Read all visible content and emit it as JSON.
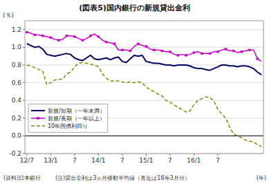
{
  "chart_data": {
    "type": "line",
    "title": "(図表5)国内銀行の新規貸出金利",
    "y_label": "(％)",
    "x_label": "(年)",
    "annotations": [
      "(資料)日本銀行",
      "(注)貸出金利は3ヵ月移動平均値（直近は16年3月分）"
    ],
    "categories": [
      "12/7",
      null,
      null,
      null,
      null,
      null,
      "13/1",
      null,
      null,
      null,
      null,
      null,
      "7",
      null,
      null,
      null,
      null,
      null,
      "14/1",
      null,
      null,
      null,
      null,
      null,
      "7",
      null,
      null,
      null,
      null,
      null,
      "15/1",
      null,
      null,
      null,
      null,
      null,
      "7",
      null,
      null,
      null,
      null,
      null,
      "16/1",
      null,
      null,
      null,
      null,
      null,
      "7",
      null,
      null,
      null,
      null,
      null,
      null,
      null,
      null,
      null,
      null,
      null
    ],
    "series": [
      {
        "name": "新規/短期（一年未満）",
        "color": "#000066",
        "line_style": "solid",
        "values": [
          1.04,
          1.02,
          1.0,
          1.01,
          0.98,
          0.92,
          0.91,
          0.9,
          0.91,
          0.92,
          0.93,
          0.92,
          0.88,
          0.86,
          0.85,
          0.88,
          0.91,
          0.87,
          0.86,
          0.87,
          0.88,
          0.86,
          0.88,
          0.89,
          0.84,
          0.83,
          0.87,
          0.91,
          0.9,
          0.91,
          0.84,
          0.83,
          0.82,
          0.82,
          0.81,
          0.8,
          0.8,
          0.79,
          0.8,
          0.8,
          0.8,
          0.79,
          0.77,
          0.76,
          0.76,
          0.75,
          0.74,
          0.76,
          0.78,
          0.8,
          0.8,
          0.79,
          0.79,
          0.78,
          0.79,
          0.79,
          0.78,
          0.76,
          0.72,
          0.69
        ]
      },
      {
        "name": "新規/長期（一年以上）",
        "color": "#cc00cc",
        "line_style": "solid",
        "marker": "square",
        "values": [
          1.17,
          1.16,
          1.14,
          1.14,
          1.13,
          1.12,
          1.11,
          1.09,
          1.08,
          1.09,
          1.13,
          1.13,
          1.12,
          1.1,
          1.08,
          1.1,
          1.13,
          1.15,
          1.12,
          1.08,
          1.06,
          1.05,
          1.04,
          0.97,
          0.97,
          0.97,
          0.96,
          1.01,
          1.04,
          1.02,
          1.01,
          0.98,
          0.97,
          0.97,
          0.96,
          0.95,
          0.95,
          0.92,
          0.91,
          0.92,
          0.91,
          0.92,
          0.94,
          0.95,
          0.93,
          0.93,
          0.93,
          0.95,
          0.95,
          0.97,
          0.98,
          0.96,
          0.96,
          0.94,
          0.95,
          0.96,
          0.97,
          0.97,
          0.87,
          0.84
        ]
      },
      {
        "name": "10年国債利回り",
        "color": "#888800",
        "line_style": "dashed",
        "values": [
          0.8,
          0.79,
          0.77,
          0.75,
          0.73,
          0.58,
          0.6,
          0.63,
          0.64,
          0.64,
          0.7,
          0.72,
          0.78,
          0.82,
          0.83,
          0.82,
          0.81,
          0.8,
          0.78,
          0.7,
          0.65,
          0.62,
          0.62,
          0.62,
          0.61,
          0.6,
          0.61,
          0.6,
          0.61,
          0.6,
          0.55,
          0.52,
          0.5,
          0.47,
          0.45,
          0.4,
          0.38,
          0.35,
          0.32,
          0.3,
          0.27,
          0.28,
          0.35,
          0.4,
          0.42,
          0.44,
          0.43,
          0.4,
          0.3,
          0.25,
          0.2,
          0.1,
          0.02,
          0.0,
          -0.02,
          -0.05,
          -0.06,
          -0.07,
          -0.1,
          -0.12
        ]
      }
    ],
    "ylim": [
      -0.2,
      1.3
    ],
    "yticks": [
      -0.2,
      {
        "value": 0.0,
        "label": "0.0"
      },
      0.2,
      0.4,
      0.6,
      0.8,
      {
        "value": 1.0,
        "label": "1.0"
      },
      1.2
    ],
    "grid": true,
    "legend": "lower left"
  }
}
